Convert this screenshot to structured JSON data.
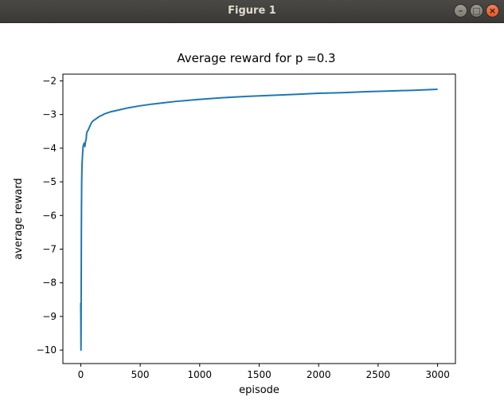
{
  "window": {
    "title": "Figure 1",
    "controls": {
      "minimize": "–",
      "maximize": "□",
      "close": "×"
    }
  },
  "colors": {
    "line": "#1f77b4",
    "axes": "#000000",
    "titlebar": "#3c3b37"
  },
  "chart_data": {
    "type": "line",
    "title": "Average reward for p =0.3",
    "xlabel": "episode",
    "ylabel": "average reward",
    "xlim": [
      -150,
      3150
    ],
    "ylim": [
      -10.4,
      -1.8
    ],
    "xticks": [
      0,
      500,
      1000,
      1500,
      2000,
      2500,
      3000
    ],
    "yticks": [
      -10,
      -9,
      -8,
      -7,
      -6,
      -5,
      -4,
      -3,
      -2
    ],
    "xtick_labels": [
      "0",
      "500",
      "1000",
      "1500",
      "2000",
      "2500",
      "3000"
    ],
    "ytick_labels": [
      "−10",
      "−9",
      "−8",
      "−7",
      "−6",
      "−5",
      "−4",
      "−3",
      "−2"
    ],
    "grid": false,
    "series": [
      {
        "x": [
          0,
          1,
          2,
          3,
          4,
          5,
          6,
          8,
          10,
          12,
          15,
          18,
          20,
          25,
          30,
          35,
          40,
          45,
          50,
          55,
          60,
          70,
          80,
          90,
          100,
          110,
          120,
          140,
          160,
          180,
          200,
          250,
          300,
          400,
          500,
          600,
          700,
          800,
          1000,
          1200,
          1400,
          1600,
          1800,
          2000,
          2200,
          2400,
          2600,
          2800,
          3000
        ],
        "y": [
          -8.6,
          -9.1,
          -10.0,
          -9.3,
          -8.0,
          -6.8,
          -5.9,
          -5.0,
          -4.6,
          -4.4,
          -4.2,
          -4.05,
          -3.95,
          -3.88,
          -3.85,
          -3.95,
          -3.8,
          -3.75,
          -3.55,
          -3.5,
          -3.48,
          -3.4,
          -3.32,
          -3.25,
          -3.2,
          -3.17,
          -3.15,
          -3.1,
          -3.05,
          -3.02,
          -2.98,
          -2.92,
          -2.88,
          -2.8,
          -2.74,
          -2.69,
          -2.65,
          -2.61,
          -2.55,
          -2.5,
          -2.46,
          -2.43,
          -2.4,
          -2.37,
          -2.35,
          -2.32,
          -2.3,
          -2.28,
          -2.25
        ]
      }
    ]
  }
}
